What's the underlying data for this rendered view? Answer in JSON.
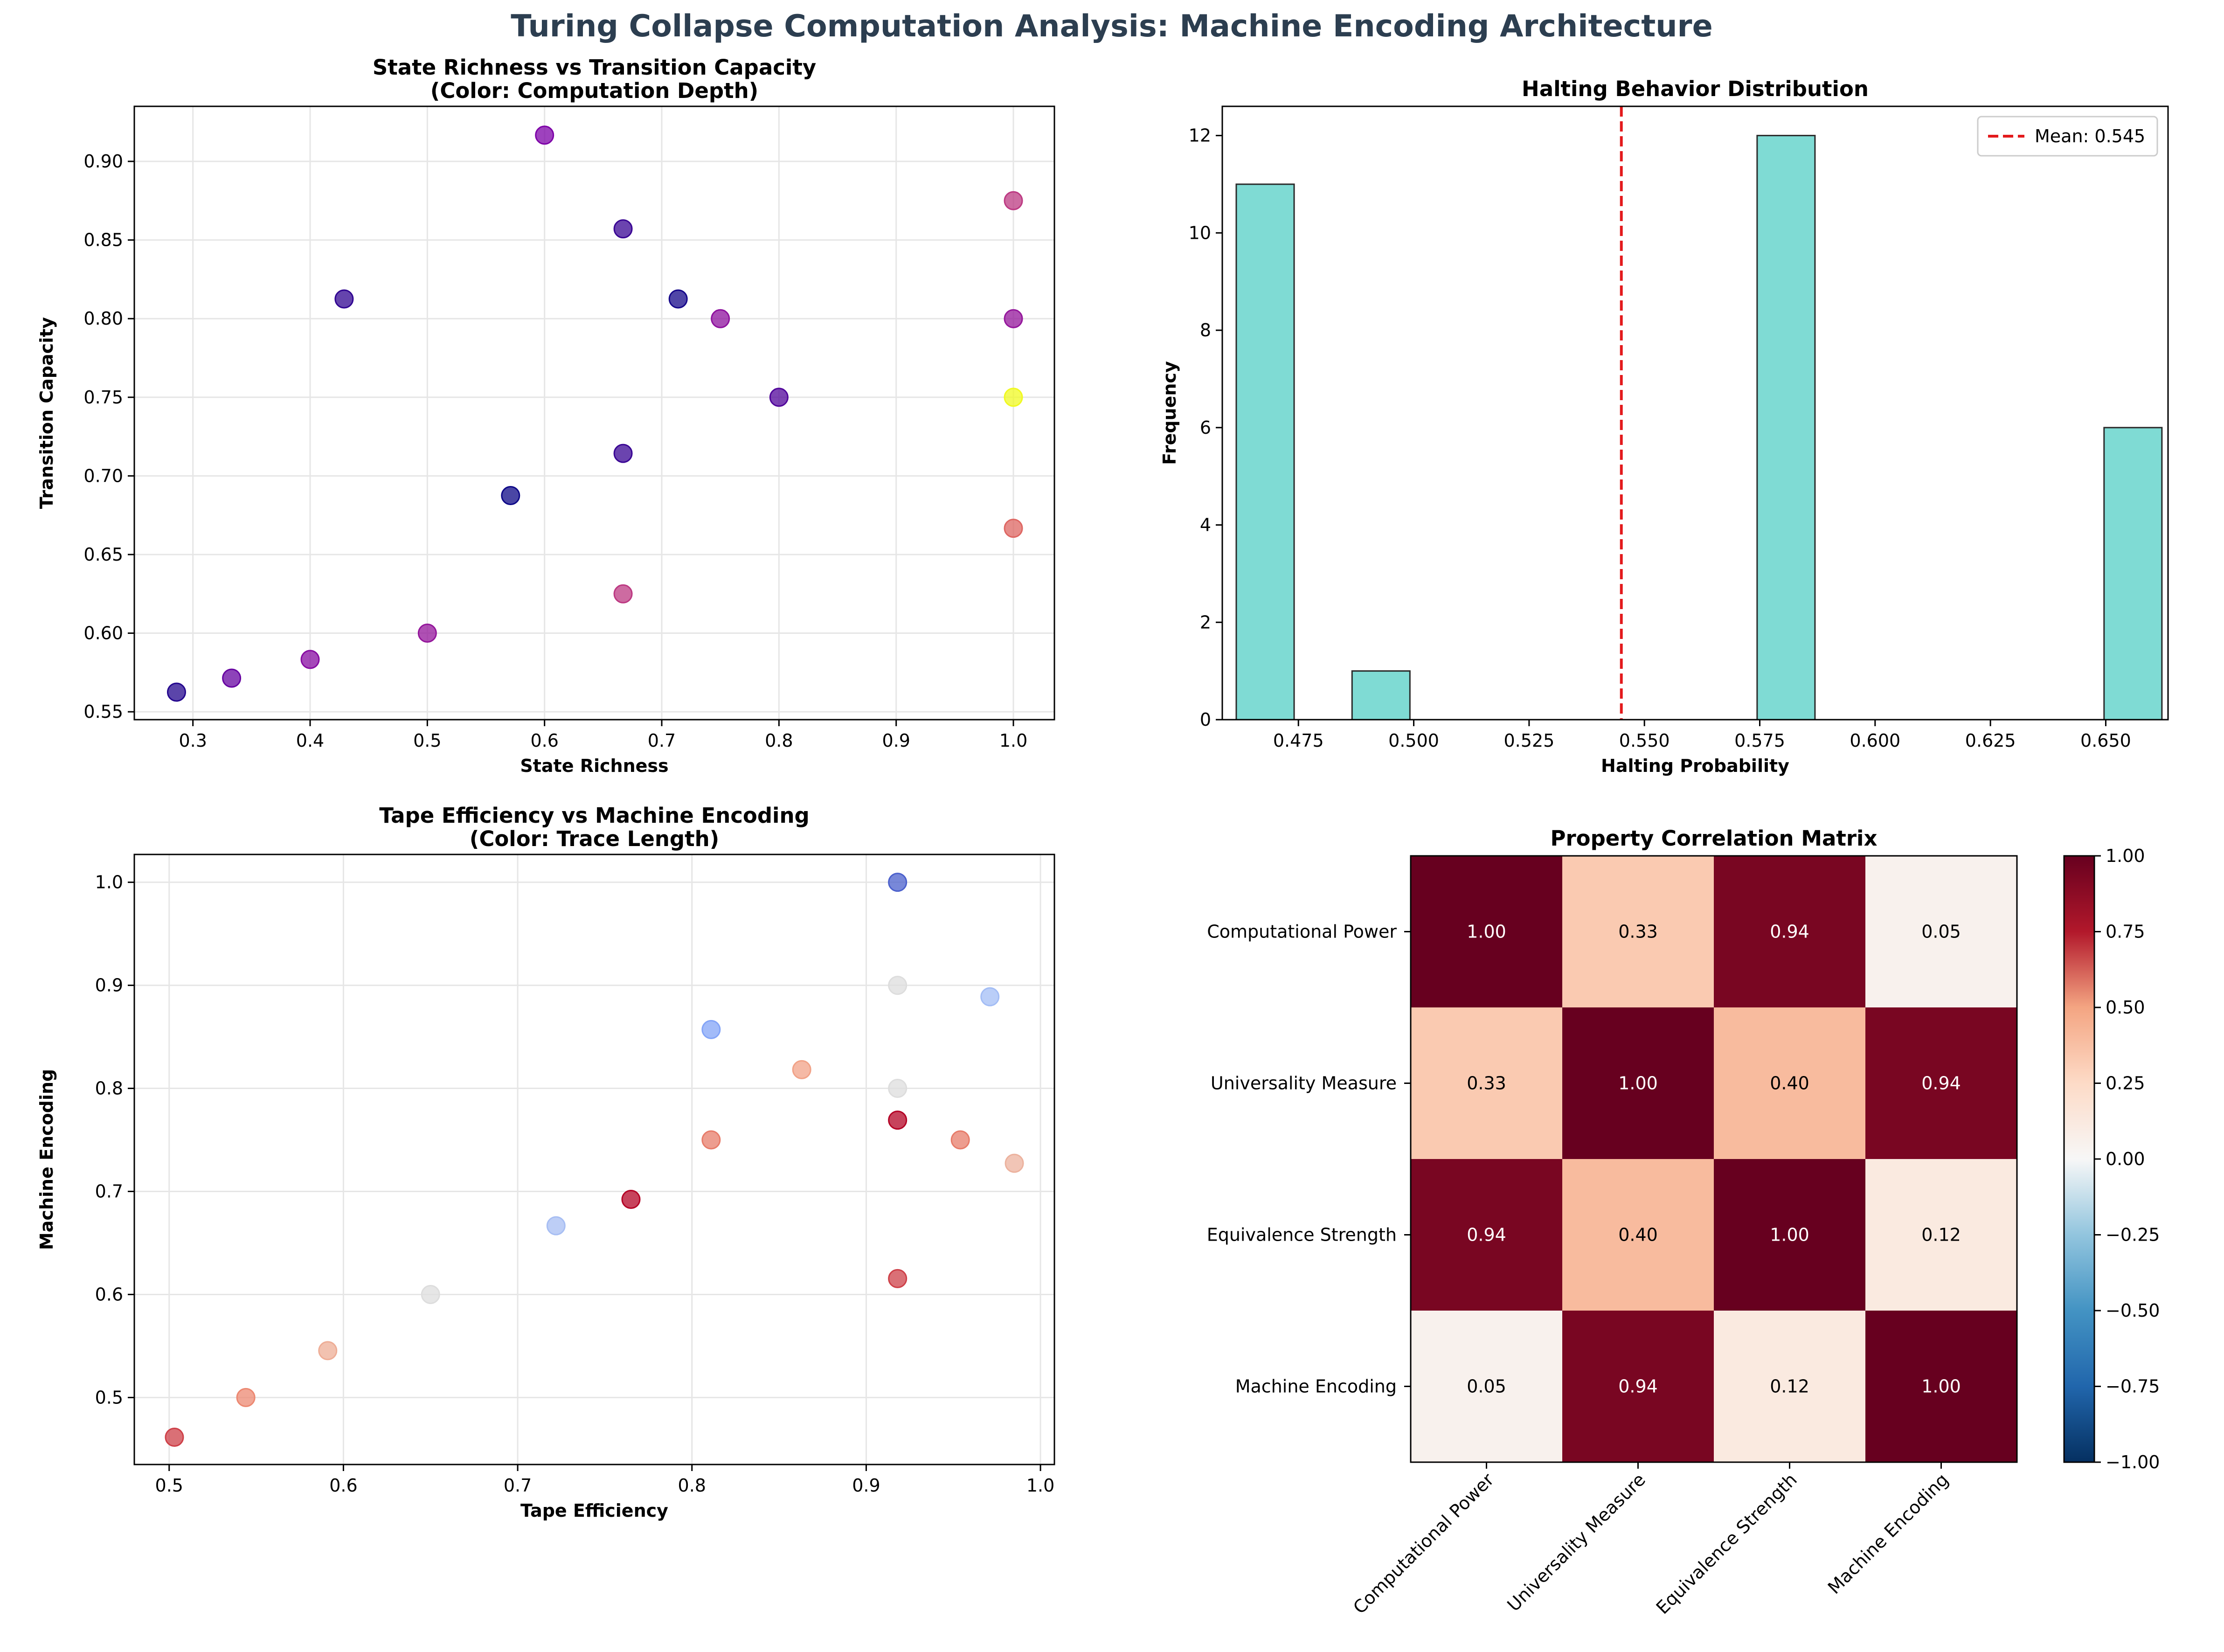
{
  "figure_title": "Turing Collapse Computation Analysis: Machine Encoding Architecture",
  "colors": {
    "title": "#2c3e50",
    "hist_fill": "#7fdbd4",
    "hist_edge": "#2a2a2a",
    "mean_line": "#e31a1c",
    "grid": "#e6e6e6"
  },
  "chart_data": [
    {
      "type": "scatter",
      "title": "State Richness vs Transition Capacity\n(Color: Computation Depth)",
      "xlabel": "State Richness",
      "ylabel": "Transition Capacity",
      "xlim": [
        0.25,
        1.035
      ],
      "ylim": [
        0.545,
        0.935
      ],
      "xticks": [
        "0.3",
        "0.4",
        "0.5",
        "0.6",
        "0.7",
        "0.8",
        "0.9",
        "1.0"
      ],
      "yticks": [
        "0.55",
        "0.60",
        "0.65",
        "0.70",
        "0.75",
        "0.80",
        "0.85",
        "0.90"
      ],
      "colormap": "plasma",
      "grid": true,
      "points": [
        {
          "x": 0.286,
          "y": 0.5625,
          "c": 0.05
        },
        {
          "x": 0.333,
          "y": 0.5714,
          "c": 0.2
        },
        {
          "x": 0.4,
          "y": 0.5833,
          "c": 0.28
        },
        {
          "x": 0.429,
          "y": 0.8125,
          "c": 0.08
        },
        {
          "x": 0.5,
          "y": 0.6,
          "c": 0.32
        },
        {
          "x": 0.571,
          "y": 0.6875,
          "c": 0.0
        },
        {
          "x": 0.6,
          "y": 0.9167,
          "c": 0.25
        },
        {
          "x": 0.667,
          "y": 0.625,
          "c": 0.45
        },
        {
          "x": 0.667,
          "y": 0.7143,
          "c": 0.1
        },
        {
          "x": 0.667,
          "y": 0.8571,
          "c": 0.1
        },
        {
          "x": 0.714,
          "y": 0.8125,
          "c": 0.02
        },
        {
          "x": 0.75,
          "y": 0.8,
          "c": 0.3
        },
        {
          "x": 0.8,
          "y": 0.75,
          "c": 0.15
        },
        {
          "x": 1.0,
          "y": 0.875,
          "c": 0.45
        },
        {
          "x": 1.0,
          "y": 0.8,
          "c": 0.32
        },
        {
          "x": 1.0,
          "y": 0.75,
          "c": 1.0
        },
        {
          "x": 1.0,
          "y": 0.6667,
          "c": 0.6
        }
      ]
    },
    {
      "type": "bar",
      "title": "Halting Behavior Distribution",
      "xlabel": "Halting Probability",
      "ylabel": "Frequency",
      "xlim": [
        0.4585,
        0.6635
      ],
      "ylim": [
        0,
        12.6
      ],
      "xticks": [
        "0.475",
        "0.500",
        "0.525",
        "0.550",
        "0.575",
        "0.600",
        "0.625",
        "0.650"
      ],
      "yticks": [
        "0",
        "2",
        "4",
        "6",
        "8",
        "10",
        "12"
      ],
      "bin_width": 0.01254,
      "bins": [
        {
          "x": 0.4678,
          "count": 11
        },
        {
          "x": 0.4804,
          "count": 0
        },
        {
          "x": 0.4929,
          "count": 1
        },
        {
          "x": 0.5054,
          "count": 0
        },
        {
          "x": 0.518,
          "count": 0
        },
        {
          "x": 0.5305,
          "count": 0
        },
        {
          "x": 0.5431,
          "count": 0
        },
        {
          "x": 0.5556,
          "count": 0
        },
        {
          "x": 0.5682,
          "count": 0
        },
        {
          "x": 0.5807,
          "count": 12
        },
        {
          "x": 0.5932,
          "count": 0
        },
        {
          "x": 0.6058,
          "count": 0
        },
        {
          "x": 0.6183,
          "count": 0
        },
        {
          "x": 0.6309,
          "count": 0
        },
        {
          "x": 0.6434,
          "count": 0
        },
        {
          "x": 0.6559,
          "count": 6
        }
      ],
      "mean": 0.545,
      "legend": "Mean: 0.545",
      "legend_position": "top-right"
    },
    {
      "type": "scatter",
      "title": "Tape Efficiency vs Machine Encoding\n(Color: Trace Length)",
      "xlabel": "Tape Efficiency",
      "ylabel": "Machine Encoding",
      "xlim": [
        0.48,
        1.008
      ],
      "ylim": [
        0.435,
        1.027
      ],
      "xticks": [
        "0.5",
        "0.6",
        "0.7",
        "0.8",
        "0.9",
        "1.0"
      ],
      "yticks": [
        "0.5",
        "0.6",
        "0.7",
        "0.8",
        "0.9",
        "1.0"
      ],
      "colormap": "coolwarm",
      "grid": true,
      "points": [
        {
          "x": 0.503,
          "y": 0.4615,
          "c": 0.9
        },
        {
          "x": 0.544,
          "y": 0.5,
          "c": 0.78
        },
        {
          "x": 0.591,
          "y": 0.5455,
          "c": 0.68
        },
        {
          "x": 0.65,
          "y": 0.6,
          "c": 0.5
        },
        {
          "x": 0.722,
          "y": 0.6667,
          "c": 0.33
        },
        {
          "x": 0.765,
          "y": 0.6923,
          "c": 1.0
        },
        {
          "x": 0.811,
          "y": 0.75,
          "c": 0.8
        },
        {
          "x": 0.811,
          "y": 0.8571,
          "c": 0.22
        },
        {
          "x": 0.863,
          "y": 0.8182,
          "c": 0.72
        },
        {
          "x": 0.918,
          "y": 1.0,
          "c": 0.05
        },
        {
          "x": 0.918,
          "y": 0.9,
          "c": 0.5
        },
        {
          "x": 0.918,
          "y": 0.8,
          "c": 0.5
        },
        {
          "x": 0.918,
          "y": 0.7692,
          "c": 1.0
        },
        {
          "x": 0.918,
          "y": 0.6154,
          "c": 0.9
        },
        {
          "x": 0.954,
          "y": 0.75,
          "c": 0.8
        },
        {
          "x": 0.971,
          "y": 0.8889,
          "c": 0.32
        },
        {
          "x": 0.985,
          "y": 0.7273,
          "c": 0.66
        }
      ]
    },
    {
      "type": "heatmap",
      "title": "Property Correlation Matrix",
      "labels": [
        "Computational Power",
        "Universality Measure",
        "Equivalence Strength",
        "Machine Encoding"
      ],
      "matrix": [
        [
          1.0,
          0.33,
          0.94,
          0.05
        ],
        [
          0.33,
          1.0,
          0.4,
          0.94
        ],
        [
          0.94,
          0.4,
          1.0,
          0.12
        ],
        [
          0.05,
          0.94,
          0.12,
          1.0
        ]
      ],
      "cell_text": [
        [
          "1.00",
          "0.33",
          "0.94",
          "0.05"
        ],
        [
          "0.33",
          "1.00",
          "0.40",
          "0.94"
        ],
        [
          "0.94",
          "0.40",
          "1.00",
          "0.12"
        ],
        [
          "0.05",
          "0.94",
          "0.12",
          "1.00"
        ]
      ],
      "colormap": "RdBu_r",
      "vmin": -1,
      "vmax": 1,
      "colorbar_ticks": [
        "1.00",
        "0.75",
        "0.50",
        "0.25",
        "0.00",
        "−0.25",
        "−0.50",
        "−0.75",
        "−1.00"
      ]
    }
  ]
}
